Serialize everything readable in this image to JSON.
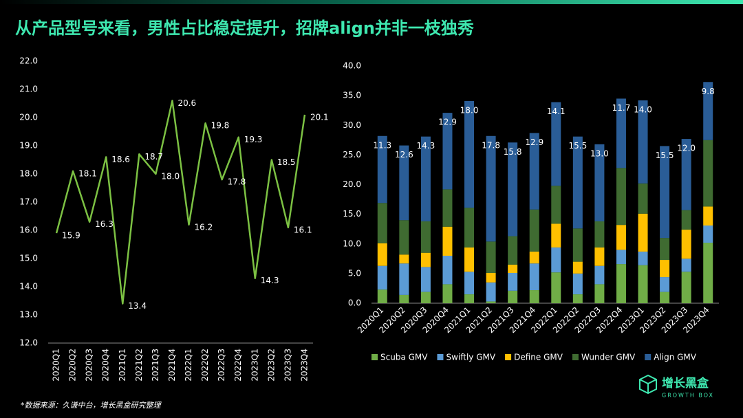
{
  "title": "从产品型号来看，男性占比稳定提升，招牌align并非一枝独秀",
  "source": "*数据来源：久谦中台，增长黑盒研究整理",
  "logo": {
    "name": "增长黑盒",
    "sub": "GROWTH BOX"
  },
  "chart_data": [
    {
      "type": "line",
      "categories": [
        "2020Q1",
        "2020Q2",
        "2020Q3",
        "2020Q4",
        "2021Q1",
        "2021Q2",
        "2021Q3",
        "2021Q4",
        "2022Q1",
        "2022Q2",
        "2022Q3",
        "2022Q4",
        "2023Q1",
        "2023Q2",
        "2023Q3",
        "2023Q4"
      ],
      "values": [
        15.9,
        18.1,
        16.3,
        18.6,
        13.4,
        18.7,
        18.0,
        20.6,
        16.2,
        19.8,
        17.8,
        19.3,
        14.3,
        18.5,
        16.1,
        20.1
      ],
      "value_labels": [
        "15.9",
        "18.1",
        "16.3",
        "18.6",
        "13.4",
        "18.7",
        "18.0",
        "20.6",
        "16.2",
        "19.8",
        "17.8",
        "19.3",
        "14.3",
        "18.5",
        "16.1",
        "20.1"
      ],
      "color": "#7cc143",
      "ylim": [
        12,
        22
      ],
      "yticks": [
        {
          "value": 12,
          "label": "12.0"
        },
        {
          "value": 13,
          "label": "13.0"
        },
        {
          "value": 14,
          "label": "14.0"
        },
        {
          "value": 15,
          "label": "15.0"
        },
        {
          "value": 16,
          "label": "16.0"
        },
        {
          "value": 17,
          "label": "17.0"
        },
        {
          "value": 18,
          "label": "18.0"
        },
        {
          "value": 19,
          "label": "19.0"
        },
        {
          "value": 20,
          "label": "20.0"
        },
        {
          "value": 21,
          "label": "21.0"
        },
        {
          "value": 22,
          "label": "22.0"
        }
      ],
      "grid": false
    },
    {
      "type": "stacked-bar",
      "categories": [
        "2020Q1",
        "2020Q2",
        "2020Q3",
        "2020Q4",
        "2021Q1",
        "2021Q2",
        "2021Q3",
        "2021Q4",
        "2022Q1",
        "2022Q2",
        "2022Q3",
        "2022Q4",
        "2023Q1",
        "2023Q2",
        "2023Q3",
        "2023Q4"
      ],
      "series": [
        {
          "name": "Scuba GMV",
          "color": "#70ad47",
          "values": [
            2.3,
            1.4,
            1.9,
            3.2,
            1.5,
            0.3,
            2.1,
            2.2,
            5.2,
            1.5,
            3.2,
            6.6,
            6.4,
            1.9,
            5.3,
            10.2
          ]
        },
        {
          "name": "Swiftly GMV",
          "color": "#5b9bd5",
          "values": [
            4.0,
            5.3,
            4.2,
            4.8,
            3.8,
            3.2,
            3.0,
            4.5,
            4.2,
            3.5,
            3.1,
            2.4,
            2.3,
            2.5,
            2.2,
            2.9
          ]
        },
        {
          "name": "Define GMV",
          "color": "#ffc000",
          "values": [
            3.8,
            1.5,
            2.4,
            4.9,
            4.1,
            1.6,
            1.4,
            2.0,
            4.0,
            2.0,
            3.1,
            4.2,
            6.4,
            2.9,
            4.9,
            3.2
          ]
        },
        {
          "name": "Wunder GMV",
          "color": "#3f6b31",
          "values": [
            6.8,
            5.8,
            5.3,
            6.3,
            6.7,
            5.3,
            4.8,
            7.1,
            6.4,
            5.6,
            4.4,
            9.6,
            5.1,
            3.7,
            3.3,
            11.2
          ]
        },
        {
          "name": "Align GMV",
          "color": "#2a5d97",
          "values": [
            11.3,
            12.6,
            14.3,
            12.9,
            18.0,
            17.8,
            15.8,
            12.9,
            14.1,
            15.5,
            13.0,
            11.7,
            14.0,
            15.5,
            12.0,
            9.8
          ],
          "value_labels": [
            "11.3",
            "12.6",
            "14.3",
            "12.9",
            "18.0",
            "17.8",
            "15.8",
            "12.9",
            "14.1",
            "15.5",
            "13.0",
            "11.7",
            "14.0",
            "15.5",
            "12.0",
            "9.8"
          ]
        }
      ],
      "ylim": [
        0,
        40
      ],
      "yticks": [
        {
          "value": 0,
          "label": "0.0"
        },
        {
          "value": 5,
          "label": "5.0"
        },
        {
          "value": 10,
          "label": "10.0"
        },
        {
          "value": 15,
          "label": "15.0"
        },
        {
          "value": 20,
          "label": "20.0"
        },
        {
          "value": 25,
          "label": "25.0"
        },
        {
          "value": 30,
          "label": "30.0"
        },
        {
          "value": 35,
          "label": "35.0"
        },
        {
          "value": 40,
          "label": "40.0"
        }
      ],
      "grid": false,
      "legend": "bottom"
    }
  ]
}
